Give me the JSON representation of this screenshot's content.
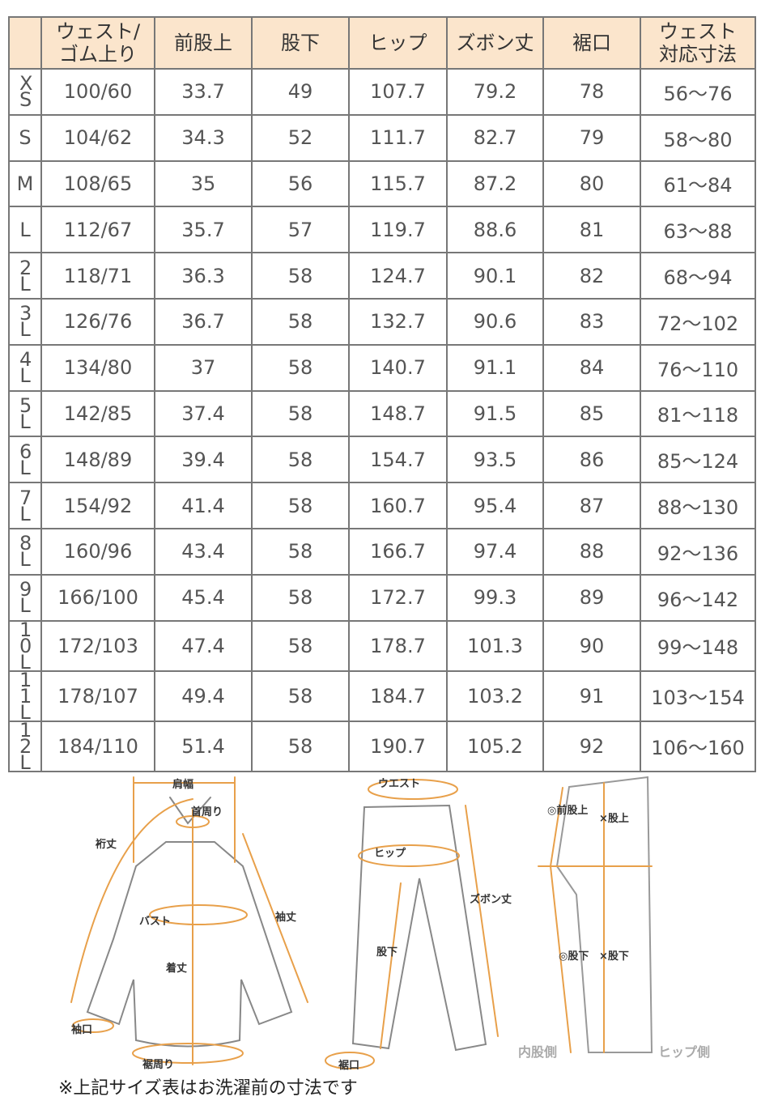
{
  "headers": [
    "",
    "ウェスト/\nゴム上り",
    "前股上",
    "股下",
    "ヒップ",
    "ズボン丈",
    "裾口",
    "ウェスト\n対応寸法"
  ],
  "rows": [
    [
      "XS",
      "100/60",
      "33.7",
      "49",
      "107.7",
      "79.2",
      "78",
      "56～76"
    ],
    [
      "S",
      "104/62",
      "34.3",
      "52",
      "111.7",
      "82.7",
      "79",
      "58～80"
    ],
    [
      "M",
      "108/65",
      "35",
      "56",
      "115.7",
      "87.2",
      "80",
      "61～84"
    ],
    [
      "L",
      "112/67",
      "35.7",
      "57",
      "119.7",
      "88.6",
      "81",
      "63～88"
    ],
    [
      "2L",
      "118/71",
      "36.3",
      "58",
      "124.7",
      "90.1",
      "82",
      "68～94"
    ],
    [
      "3L",
      "126/76",
      "36.7",
      "58",
      "132.7",
      "90.6",
      "83",
      "72～102"
    ],
    [
      "4L",
      "134/80",
      "37",
      "58",
      "140.7",
      "91.1",
      "84",
      "76～110"
    ],
    [
      "5L",
      "142/85",
      "37.4",
      "58",
      "148.7",
      "91.5",
      "85",
      "81～118"
    ],
    [
      "6L",
      "148/89",
      "39.4",
      "58",
      "154.7",
      "93.5",
      "86",
      "85～124"
    ],
    [
      "7L",
      "154/92",
      "41.4",
      "58",
      "160.7",
      "95.4",
      "87",
      "88～130"
    ],
    [
      "8L",
      "160/96",
      "43.4",
      "58",
      "166.7",
      "97.4",
      "88",
      "92～136"
    ],
    [
      "9L",
      "166/100",
      "45.4",
      "58",
      "172.7",
      "99.3",
      "89",
      "96～142"
    ],
    [
      "10L",
      "172/103",
      "47.4",
      "58",
      "178.7",
      "101.3",
      "90",
      "99～148"
    ],
    [
      "11L",
      "178/107",
      "49.4",
      "58",
      "184.7",
      "103.2",
      "91",
      "103～154"
    ],
    [
      "12L",
      "184/110",
      "51.4",
      "58",
      "190.7",
      "105.2",
      "92",
      "106～160"
    ]
  ],
  "diagram": {
    "shirt": {
      "shoulder": "肩幅",
      "neck": "首周り",
      "yuki": "裄丈",
      "bust": "バスト",
      "sleeve": "袖丈",
      "length": "着丈",
      "cuff": "袖口",
      "hem": "裾周り"
    },
    "pants": {
      "waist": "ウエスト",
      "hip": "ヒップ",
      "inseam": "股下",
      "length": "ズボン丈",
      "hem": "裾口"
    },
    "side": {
      "front_rise": "◎前股上",
      "rise": "×股上",
      "inseam_o": "◎股下",
      "inseam_x": "×股下",
      "inner": "内股側",
      "hip_side": "ヒップ側"
    }
  },
  "colors": {
    "header_bg": "#fbe5cc",
    "accent": "#e8a04a",
    "border": "#777777"
  },
  "note": "※上記サイズ表はお洗濯前の寸法です"
}
